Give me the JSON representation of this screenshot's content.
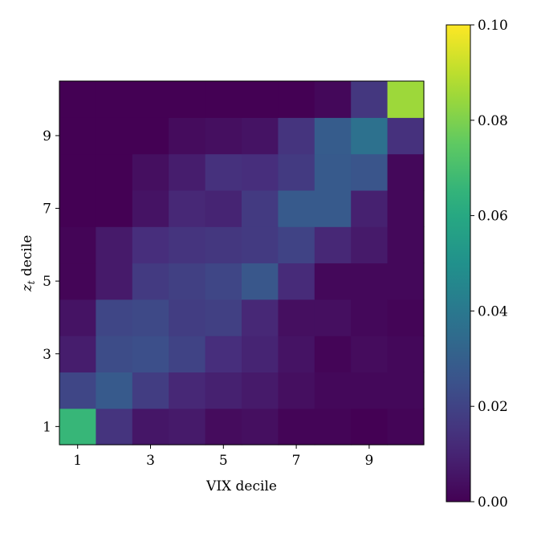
{
  "chart_data": {
    "type": "heatmap",
    "xlabel": "VIX decile",
    "ylabel": "z_t decile",
    "ylabel_main": "z",
    "ylabel_sub": "t",
    "ylabel_rest": " decile",
    "x": [
      1,
      2,
      3,
      4,
      5,
      6,
      7,
      8,
      9,
      10
    ],
    "y": [
      1,
      2,
      3,
      4,
      5,
      6,
      7,
      8,
      9,
      10
    ],
    "xticks": [
      1,
      3,
      5,
      7,
      9
    ],
    "xtick_labels": [
      "1",
      "3",
      "5",
      "7",
      "9"
    ],
    "yticks": [
      1,
      3,
      5,
      7,
      9
    ],
    "ytick_labels": [
      "1",
      "3",
      "5",
      "7",
      "9"
    ],
    "colormap": "viridis",
    "clim": [
      0.0,
      0.1
    ],
    "colorbar_ticks": [
      0.0,
      0.02,
      0.04,
      0.06,
      0.08,
      0.1
    ],
    "colorbar_tick_labels": [
      "0.00",
      "0.02",
      "0.04",
      "0.06",
      "0.08",
      "0.10"
    ],
    "values_by_row_from_y1": [
      [
        0.066,
        0.015,
        0.006,
        0.007,
        0.003,
        0.004,
        0.001,
        0.001,
        0.0,
        0.001
      ],
      [
        0.021,
        0.028,
        0.018,
        0.011,
        0.009,
        0.007,
        0.004,
        0.002,
        0.002,
        0.002
      ],
      [
        0.008,
        0.023,
        0.024,
        0.02,
        0.013,
        0.01,
        0.005,
        0.001,
        0.003,
        0.002
      ],
      [
        0.005,
        0.021,
        0.022,
        0.018,
        0.019,
        0.011,
        0.004,
        0.004,
        0.002,
        0.001
      ],
      [
        0.001,
        0.007,
        0.017,
        0.019,
        0.021,
        0.027,
        0.012,
        0.002,
        0.002,
        0.002
      ],
      [
        0.001,
        0.007,
        0.013,
        0.015,
        0.016,
        0.017,
        0.02,
        0.011,
        0.007,
        0.002
      ],
      [
        0.0,
        0.0,
        0.005,
        0.011,
        0.01,
        0.017,
        0.028,
        0.028,
        0.009,
        0.002
      ],
      [
        0.0,
        0.0,
        0.004,
        0.008,
        0.014,
        0.013,
        0.017,
        0.028,
        0.026,
        0.002
      ],
      [
        0.0,
        0.0,
        0.0,
        0.003,
        0.004,
        0.005,
        0.015,
        0.029,
        0.037,
        0.014
      ],
      [
        0.0,
        0.0,
        0.0,
        0.0,
        0.0,
        0.0,
        0.0,
        0.002,
        0.016,
        0.085
      ]
    ]
  }
}
